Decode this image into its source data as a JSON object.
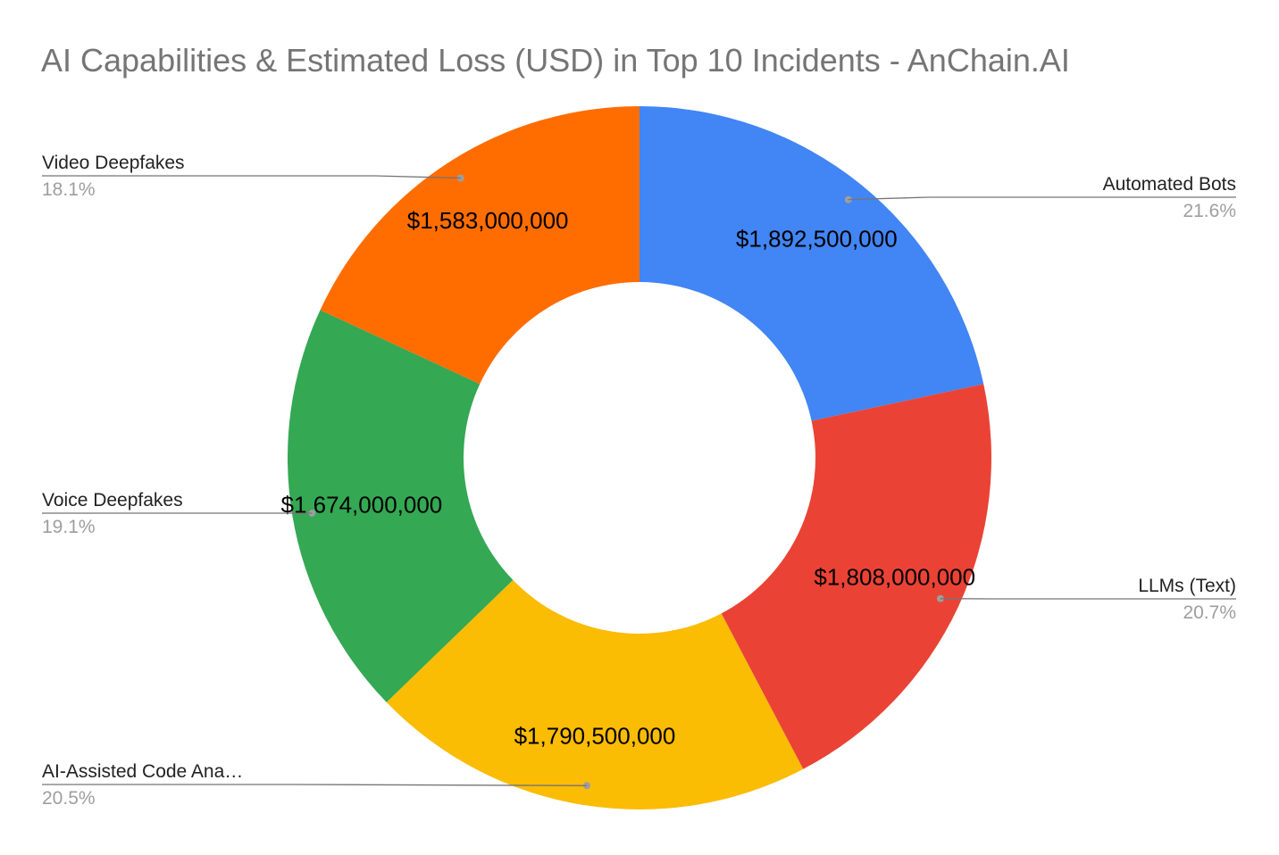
{
  "chart_data": {
    "type": "pie",
    "subtype": "donut",
    "title": "AI Capabilities & Estimated Loss (USD) in Top 10 Incidents - AnChain.AI",
    "legend_placement": "labels-outside-with-leaders",
    "slices": [
      {
        "name": "Automated Bots",
        "value": 1892500000,
        "value_label": "$1,892,500,000",
        "percent": "21.6%",
        "color": "#4285F4"
      },
      {
        "name": "LLMs (Text)",
        "value": 1808000000,
        "value_label": "$1,808,000,000",
        "percent": "20.7%",
        "color": "#EA4335"
      },
      {
        "name": "AI-Assisted Code Ana…",
        "value": 1790500000,
        "value_label": "$1,790,500,000",
        "percent": "20.5%",
        "color": "#FBBC04"
      },
      {
        "name": "Voice Deepfakes",
        "value": 1674000000,
        "value_label": "$1,674,000,000",
        "percent": "19.1%",
        "color": "#34A853"
      },
      {
        "name": "Video Deepfakes",
        "value": 1583000000,
        "value_label": "$1,583,000,000",
        "percent": "18.1%",
        "color": "#FF6D01"
      }
    ]
  }
}
